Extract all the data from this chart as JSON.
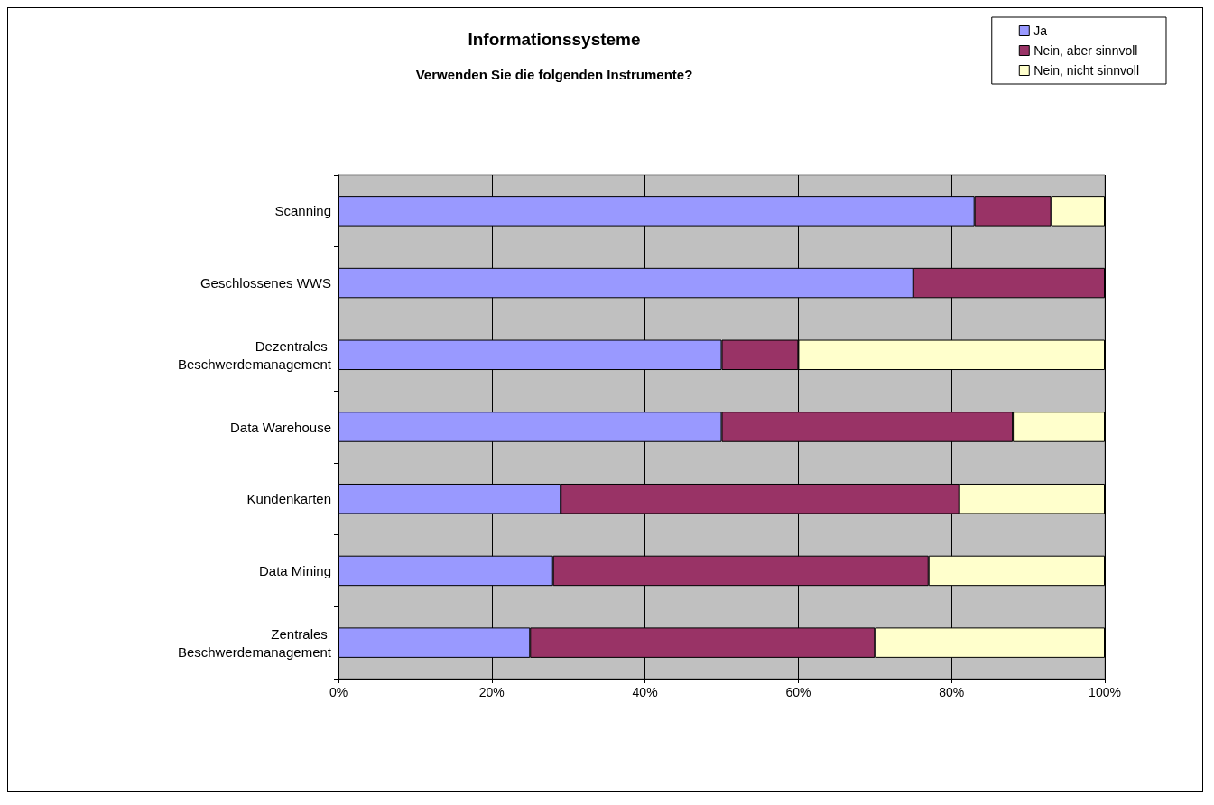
{
  "chart_data": {
    "type": "bar",
    "title": "Informationssysteme",
    "subtitle": "Verwenden Sie die folgenden Instrumente?",
    "orientation": "horizontal",
    "stacked": true,
    "categories": [
      "Scanning",
      "Geschlossenes WWS",
      "Dezentrales Beschwerdemanagement",
      "Data Warehouse",
      "Kundenkarten",
      "Data Mining",
      "Zentrales Beschwerdemanagement"
    ],
    "series": [
      {
        "name": "Ja",
        "color": "#9999ff",
        "values": [
          83,
          75,
          50,
          50,
          29,
          28,
          25
        ]
      },
      {
        "name": "Nein, aber sinnvoll",
        "color": "#993366",
        "values": [
          10,
          25,
          10,
          38,
          52,
          49,
          45
        ]
      },
      {
        "name": "Nein, nicht sinnvoll",
        "color": "#ffffcc",
        "values": [
          7,
          0,
          40,
          12,
          19,
          23,
          30
        ]
      }
    ],
    "xlim": [
      0,
      100
    ],
    "xticks": [
      {
        "value": 0,
        "label": "0%"
      },
      {
        "value": 20,
        "label": "20%"
      },
      {
        "value": 40,
        "label": "40%"
      },
      {
        "value": 60,
        "label": "60%"
      },
      {
        "value": 80,
        "label": "80%"
      },
      {
        "value": 100,
        "label": "100%"
      }
    ],
    "grid": "x",
    "legend": "top right"
  }
}
